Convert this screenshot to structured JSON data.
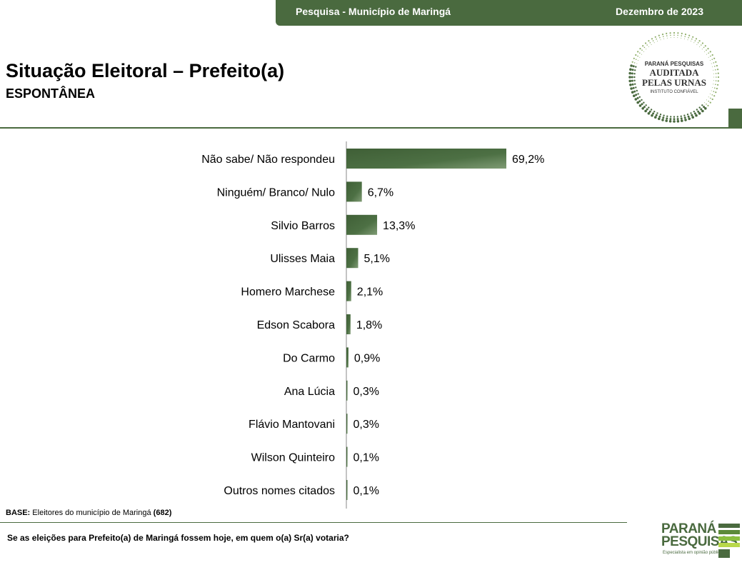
{
  "header": {
    "left": "Pesquisa - Município de Maringá",
    "right": "Dezembro de 2023"
  },
  "title": "Situação Eleitoral – Prefeito(a)",
  "subtitle": "ESPONTÂNEA",
  "seal": {
    "line1": "PARANÁ PESQUISAS",
    "line2": "AUDITADA",
    "line3": "PELAS URNAS",
    "line4": "INSTITUTO CONFIÁVEL"
  },
  "base": {
    "label": "BASE:",
    "text": "Eleitores do município de Maringá",
    "count": "(682)"
  },
  "question": "Se as eleições para Prefeito(a) de Maringá fossem hoje, em quem o(a) Sr(a) votaria?",
  "logo": {
    "line1": "PARANÁ",
    "line2": "PESQUISAS",
    "tagline": "Especialista em opinião pública."
  },
  "colors": {
    "accent": "#4a6a3f",
    "bar": "#4a6a3f"
  },
  "chart_data": {
    "type": "bar",
    "orientation": "horizontal",
    "categories": [
      "Não sabe/ Não respondeu",
      "Ninguém/ Branco/ Nulo",
      "Silvio Barros",
      "Ulisses Maia",
      "Homero Marchese",
      "Edson Scabora",
      "Do Carmo",
      "Ana Lúcia",
      "Flávio Mantovani",
      "Wilson Quinteiro",
      "Outros nomes citados"
    ],
    "values": [
      69.2,
      6.7,
      13.3,
      5.1,
      2.1,
      1.8,
      0.9,
      0.3,
      0.3,
      0.1,
      0.1
    ],
    "labels": [
      "69,2%",
      "6,7%",
      "13,3%",
      "5,1%",
      "2,1%",
      "1,8%",
      "0,9%",
      "0,3%",
      "0,3%",
      "0,1%",
      "0,1%"
    ],
    "unit": "%",
    "grid": false
  }
}
